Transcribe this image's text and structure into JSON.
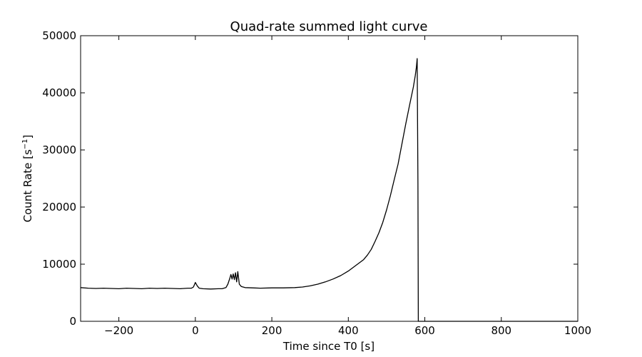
{
  "chart_data": {
    "type": "line",
    "title": "Quad-rate summed light curve",
    "xlabel": "Time since T0 [s]",
    "ylabel_main": "Count Rate [s",
    "ylabel_sup": "−1",
    "ylabel_end": "]",
    "xlim": [
      -300,
      1000
    ],
    "ylim": [
      0,
      50000
    ],
    "xticks": [
      {
        "value": -200,
        "label": "−200"
      },
      {
        "value": 0,
        "label": "0"
      },
      {
        "value": 200,
        "label": "200"
      },
      {
        "value": 400,
        "label": "400"
      },
      {
        "value": 600,
        "label": "600"
      },
      {
        "value": 800,
        "label": "800"
      },
      {
        "value": 1000,
        "label": "1000"
      }
    ],
    "yticks": [
      {
        "value": 0,
        "label": "0"
      },
      {
        "value": 10000,
        "label": "10000"
      },
      {
        "value": 20000,
        "label": "20000"
      },
      {
        "value": 30000,
        "label": "30000"
      },
      {
        "value": 40000,
        "label": "40000"
      },
      {
        "value": 50000,
        "label": "50000"
      }
    ],
    "grid": false,
    "legend": "none",
    "line_color": "#000000",
    "series": [
      {
        "x": [
          -300,
          -280,
          -260,
          -240,
          -220,
          -200,
          -180,
          -160,
          -140,
          -120,
          -100,
          -80,
          -60,
          -40,
          -20,
          -10,
          -5,
          0,
          5,
          10,
          20,
          40,
          60,
          70,
          80,
          85,
          90,
          93,
          96,
          99,
          102,
          105,
          108,
          111,
          115,
          120,
          130,
          150,
          170,
          200,
          230,
          260,
          280,
          300,
          320,
          340,
          360,
          380,
          400,
          410,
          420,
          430,
          440,
          450,
          460,
          470,
          480,
          490,
          500,
          510,
          520,
          530,
          540,
          550,
          560,
          570,
          575,
          578,
          580,
          582,
          583,
          600,
          650,
          700,
          800,
          900,
          1000
        ],
        "y": [
          5900,
          5800,
          5750,
          5800,
          5750,
          5700,
          5800,
          5750,
          5700,
          5800,
          5750,
          5800,
          5750,
          5700,
          5800,
          5800,
          6000,
          6800,
          6200,
          5800,
          5700,
          5650,
          5700,
          5700,
          5900,
          6500,
          7500,
          8200,
          7400,
          8300,
          7300,
          8500,
          6900,
          8700,
          6500,
          6100,
          5900,
          5850,
          5800,
          5850,
          5850,
          5900,
          6000,
          6200,
          6500,
          6900,
          7400,
          8000,
          8800,
          9300,
          9800,
          10300,
          10800,
          11600,
          12600,
          14000,
          15500,
          17300,
          19500,
          22000,
          24800,
          27500,
          31000,
          34500,
          37800,
          41000,
          43000,
          44500,
          46000,
          24000,
          0,
          0,
          0,
          0,
          0,
          0,
          0
        ]
      }
    ]
  }
}
